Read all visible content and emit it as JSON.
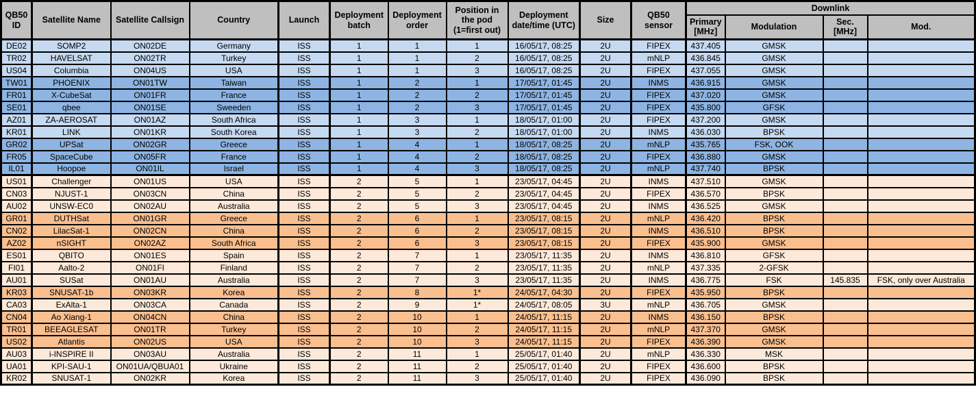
{
  "colors": {
    "header_bg": "#bfbfbf",
    "blue_light": "#c5d9f1",
    "blue_medium": "#8db4e2",
    "orange_light": "#fde9d9",
    "orange_medium": "#fabf8f",
    "border": "#000000"
  },
  "header": {
    "qb50_id": "QB50 ID",
    "satellite_name": "Satellite Name",
    "satellite_callsign": "Satellite Callsign",
    "country": "Country",
    "launch": "Launch",
    "deployment_batch": "Deployment batch",
    "deployment_order": "Deployment order",
    "position_in_pod": "Position in the pod (1=first out)",
    "deployment_datetime": "Deployment date/time (UTC)",
    "size": "Size",
    "qb50_sensor": "QB50 sensor",
    "downlink": "Downlink",
    "primary_mhz": "Primary [MHz]",
    "modulation": "Modulation",
    "sec_mhz": "Sec. [MHz]",
    "sec_modulation": "Mod."
  },
  "rows": [
    {
      "id": "DE02",
      "name": "SOMP2",
      "callsign": "ON02DE",
      "country": "Germany",
      "launch": "ISS",
      "batch": "1",
      "order": "1",
      "pod": "1",
      "deployed": "16/05/17, 08:25",
      "size": "2U",
      "sensor": "FIPEX",
      "primary": "437.405",
      "modulation": "GMSK",
      "sec": "",
      "mod": "",
      "shade": "blue_light"
    },
    {
      "id": "TR02",
      "name": "HAVELSAT",
      "callsign": "ON02TR",
      "country": "Turkey",
      "launch": "ISS",
      "batch": "1",
      "order": "1",
      "pod": "2",
      "deployed": "16/05/17, 08:25",
      "size": "2U",
      "sensor": "mNLP",
      "primary": "436.845",
      "modulation": "GMSK",
      "sec": "",
      "mod": "",
      "shade": "blue_light"
    },
    {
      "id": "US04",
      "name": "Columbia",
      "callsign": "ON04US",
      "country": "USA",
      "launch": "ISS",
      "batch": "1",
      "order": "1",
      "pod": "3",
      "deployed": "16/05/17, 08:25",
      "size": "2U",
      "sensor": "FIPEX",
      "primary": "437.055",
      "modulation": "GMSK",
      "sec": "",
      "mod": "",
      "shade": "blue_light"
    },
    {
      "id": "TW01",
      "name": "PHOENIX",
      "callsign": "ON01TW",
      "country": "Taiwan",
      "launch": "ISS",
      "batch": "1",
      "order": "2",
      "pod": "1",
      "deployed": "17/05/17, 01:45",
      "size": "2U",
      "sensor": "INMS",
      "primary": "436.915",
      "modulation": "GMSK",
      "sec": "",
      "mod": "",
      "shade": "blue_medium"
    },
    {
      "id": "FR01",
      "name": "X-CubeSat",
      "callsign": "ON01FR",
      "country": "France",
      "launch": "ISS",
      "batch": "1",
      "order": "2",
      "pod": "2",
      "deployed": "17/05/17, 01:45",
      "size": "2U",
      "sensor": "FIPEX",
      "primary": "437.020",
      "modulation": "GMSK",
      "sec": "",
      "mod": "",
      "shade": "blue_medium"
    },
    {
      "id": "SE01",
      "name": "qbee",
      "callsign": "ON01SE",
      "country": "Sweeden",
      "launch": "ISS",
      "batch": "1",
      "order": "2",
      "pod": "3",
      "deployed": "17/05/17, 01:45",
      "size": "2U",
      "sensor": "FIPEX",
      "primary": "435.800",
      "modulation": "GFSK",
      "sec": "",
      "mod": "",
      "shade": "blue_medium"
    },
    {
      "id": "AZ01",
      "name": "ZA-AEROSAT",
      "callsign": "ON01AZ",
      "country": "South Africa",
      "launch": "ISS",
      "batch": "1",
      "order": "3",
      "pod": "1",
      "deployed": "18/05/17, 01:00",
      "size": "2U",
      "sensor": "FIPEX",
      "primary": "437.200",
      "modulation": "GMSK",
      "sec": "",
      "mod": "",
      "shade": "blue_light"
    },
    {
      "id": "KR01",
      "name": "LINK",
      "callsign": "ON01KR",
      "country": "South Korea",
      "launch": "ISS",
      "batch": "1",
      "order": "3",
      "pod": "2",
      "deployed": "18/05/17, 01:00",
      "size": "2U",
      "sensor": "INMS",
      "primary": "436.030",
      "modulation": "BPSK",
      "sec": "",
      "mod": "",
      "shade": "blue_light"
    },
    {
      "id": "GR02",
      "name": "UPSat",
      "callsign": "ON02GR",
      "country": "Greece",
      "launch": "ISS",
      "batch": "1",
      "order": "4",
      "pod": "1",
      "deployed": "18/05/17, 08:25",
      "size": "2U",
      "sensor": "mNLP",
      "primary": "435.765",
      "modulation": "FSK, OOK",
      "sec": "",
      "mod": "",
      "shade": "blue_medium"
    },
    {
      "id": "FR05",
      "name": "SpaceCube",
      "callsign": "ON05FR",
      "country": "France",
      "launch": "ISS",
      "batch": "1",
      "order": "4",
      "pod": "2",
      "deployed": "18/05/17, 08:25",
      "size": "2U",
      "sensor": "FIPEX",
      "primary": "436.880",
      "modulation": "GMSK",
      "sec": "",
      "mod": "",
      "shade": "blue_medium"
    },
    {
      "id": "IL01",
      "name": "Hoopoe",
      "callsign": "ON01IL",
      "country": "Israel",
      "launch": "ISS",
      "batch": "1",
      "order": "4",
      "pod": "3",
      "deployed": "18/05/17, 08:25",
      "size": "2U",
      "sensor": "mNLP",
      "primary": "437.740",
      "modulation": "BPSK",
      "sec": "",
      "mod": "",
      "shade": "blue_medium"
    },
    {
      "id": "US01",
      "name": "Challenger",
      "callsign": "ON01US",
      "country": "USA",
      "launch": "ISS",
      "batch": "2",
      "order": "5",
      "pod": "1",
      "deployed": "23/05/17, 04:45",
      "size": "2U",
      "sensor": "INMS",
      "primary": "437.510",
      "modulation": "GMSK",
      "sec": "",
      "mod": "",
      "shade": "orange_light"
    },
    {
      "id": "CN03",
      "name": "NJUST-1",
      "callsign": "ON03CN",
      "country": "China",
      "launch": "ISS",
      "batch": "2",
      "order": "5",
      "pod": "2",
      "deployed": "23/05/17, 04:45",
      "size": "2U",
      "sensor": "FIPEX",
      "primary": "436.570",
      "modulation": "BPSK",
      "sec": "",
      "mod": "",
      "shade": "orange_light"
    },
    {
      "id": "AU02",
      "name": "UNSW-EC0",
      "callsign": "ON02AU",
      "country": "Australia",
      "launch": "ISS",
      "batch": "2",
      "order": "5",
      "pod": "3",
      "deployed": "23/05/17, 04:45",
      "size": "2U",
      "sensor": "INMS",
      "primary": "436.525",
      "modulation": "GMSK",
      "sec": "",
      "mod": "",
      "shade": "orange_light"
    },
    {
      "id": "GR01",
      "name": "DUTHSat",
      "callsign": "ON01GR",
      "country": "Greece",
      "launch": "ISS",
      "batch": "2",
      "order": "6",
      "pod": "1",
      "deployed": "23/05/17, 08:15",
      "size": "2U",
      "sensor": "mNLP",
      "primary": "436.420",
      "modulation": "BPSK",
      "sec": "",
      "mod": "",
      "shade": "orange_medium"
    },
    {
      "id": "CN02",
      "name": "LilacSat-1",
      "callsign": "ON02CN",
      "country": "China",
      "launch": "ISS",
      "batch": "2",
      "order": "6",
      "pod": "2",
      "deployed": "23/05/17, 08:15",
      "size": "2U",
      "sensor": "INMS",
      "primary": "436.510",
      "modulation": "BPSK",
      "sec": "",
      "mod": "",
      "shade": "orange_medium"
    },
    {
      "id": "AZ02",
      "name": "nSIGHT",
      "callsign": "ON02AZ",
      "country": "South Africa",
      "launch": "ISS",
      "batch": "2",
      "order": "6",
      "pod": "3",
      "deployed": "23/05/17, 08:15",
      "size": "2U",
      "sensor": "FIPEX",
      "primary": "435.900",
      "modulation": "GMSK",
      "sec": "",
      "mod": "",
      "shade": "orange_medium"
    },
    {
      "id": "ES01",
      "name": "QBITO",
      "callsign": "ON01ES",
      "country": "Spain",
      "launch": "ISS",
      "batch": "2",
      "order": "7",
      "pod": "1",
      "deployed": "23/05/17, 11:35",
      "size": "2U",
      "sensor": "INMS",
      "primary": "436.810",
      "modulation": "GFSK",
      "sec": "",
      "mod": "",
      "shade": "orange_light"
    },
    {
      "id": "FI01",
      "name": "Aalto-2",
      "callsign": "ON01FI",
      "country": "Finland",
      "launch": "ISS",
      "batch": "2",
      "order": "7",
      "pod": "2",
      "deployed": "23/05/17, 11:35",
      "size": "2U",
      "sensor": "mNLP",
      "primary": "437.335",
      "modulation": "2-GFSK",
      "sec": "",
      "mod": "",
      "shade": "orange_light"
    },
    {
      "id": "AU01",
      "name": "SUSat",
      "callsign": "ON01AU",
      "country": "Australia",
      "launch": "ISS",
      "batch": "2",
      "order": "7",
      "pod": "3",
      "deployed": "23/05/17, 11:35",
      "size": "2U",
      "sensor": "INMS",
      "primary": "436.775",
      "modulation": "FSK",
      "sec": "145.835",
      "mod": "FSK, only over Australia",
      "shade": "orange_light"
    },
    {
      "id": "KR03",
      "name": "SNUSAT-1b",
      "callsign": "ON03KR",
      "country": "Korea",
      "launch": "ISS",
      "batch": "2",
      "order": "8",
      "pod": "1*",
      "deployed": "24/05/17, 04:30",
      "size": "2U",
      "sensor": "FIPEX",
      "primary": "435.950",
      "modulation": "BPSK",
      "sec": "",
      "mod": "",
      "shade": "orange_medium"
    },
    {
      "id": "CA03",
      "name": "ExAlta-1",
      "callsign": "ON03CA",
      "country": "Canada",
      "launch": "ISS",
      "batch": "2",
      "order": "9",
      "pod": "1*",
      "deployed": "24/05/17, 08:05",
      "size": "3U",
      "sensor": "mNLP",
      "primary": "436.705",
      "modulation": "GMSK",
      "sec": "",
      "mod": "",
      "shade": "orange_light"
    },
    {
      "id": "CN04",
      "name": "Ao Xiang-1",
      "callsign": "ON04CN",
      "country": "China",
      "launch": "ISS",
      "batch": "2",
      "order": "10",
      "pod": "1",
      "deployed": "24/05/17, 11:15",
      "size": "2U",
      "sensor": "INMS",
      "primary": "436.150",
      "modulation": "BPSK",
      "sec": "",
      "mod": "",
      "shade": "orange_medium"
    },
    {
      "id": "TR01",
      "name": "BEEAGLESAT",
      "callsign": "ON01TR",
      "country": "Turkey",
      "launch": "ISS",
      "batch": "2",
      "order": "10",
      "pod": "2",
      "deployed": "24/05/17, 11:15",
      "size": "2U",
      "sensor": "mNLP",
      "primary": "437.370",
      "modulation": "GMSK",
      "sec": "",
      "mod": "",
      "shade": "orange_medium"
    },
    {
      "id": "US02",
      "name": "Atlantis",
      "callsign": "ON02US",
      "country": "USA",
      "launch": "ISS",
      "batch": "2",
      "order": "10",
      "pod": "3",
      "deployed": "24/05/17, 11:15",
      "size": "2U",
      "sensor": "FIPEX",
      "primary": "436.390",
      "modulation": "GMSK",
      "sec": "",
      "mod": "",
      "shade": "orange_medium"
    },
    {
      "id": "AU03",
      "name": "i-INSPIRE II",
      "callsign": "ON03AU",
      "country": "Australia",
      "launch": "ISS",
      "batch": "2",
      "order": "11",
      "pod": "1",
      "deployed": "25/05/17, 01:40",
      "size": "2U",
      "sensor": "mNLP",
      "primary": "436.330",
      "modulation": "MSK",
      "sec": "",
      "mod": "",
      "shade": "orange_light"
    },
    {
      "id": "UA01",
      "name": "KPI-SAU-1",
      "callsign": "ON01UA/QBUA01",
      "country": "Ukraine",
      "launch": "ISS",
      "batch": "2",
      "order": "11",
      "pod": "2",
      "deployed": "25/05/17, 01:40",
      "size": "2U",
      "sensor": "FIPEX",
      "primary": "436.600",
      "modulation": "BPSK",
      "sec": "",
      "mod": "",
      "shade": "orange_light"
    },
    {
      "id": "KR02",
      "name": "SNUSAT-1",
      "callsign": "ON02KR",
      "country": "Korea",
      "launch": "ISS",
      "batch": "2",
      "order": "11",
      "pod": "3",
      "deployed": "25/05/17, 01:40",
      "size": "2U",
      "sensor": "FIPEX",
      "primary": "436.090",
      "modulation": "BPSK",
      "sec": "",
      "mod": "",
      "shade": "orange_light"
    }
  ]
}
